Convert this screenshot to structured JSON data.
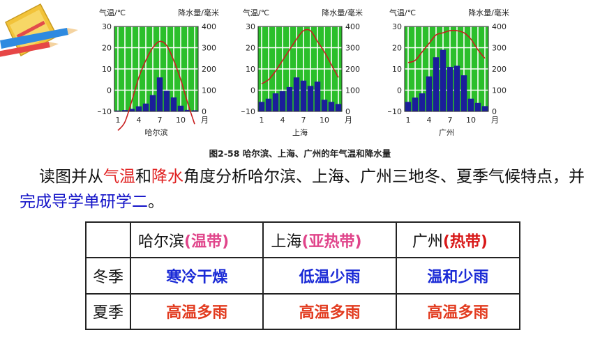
{
  "figure": {
    "caption": "图2-58 哈尔滨、上海、广州的年气温和降水量",
    "left_axis_title": "气温/℃",
    "right_axis_title": "降水量/毫米",
    "x_unit": "月"
  },
  "chart_data": [
    {
      "type": "bar",
      "city": "哈尔滨",
      "months": [
        1,
        2,
        3,
        4,
        5,
        6,
        7,
        8,
        9,
        10,
        11,
        12
      ],
      "x_ticks": [
        1,
        4,
        7,
        10
      ],
      "precip_mm": [
        4,
        6,
        12,
        24,
        37,
        77,
        160,
        97,
        66,
        27,
        7,
        5
      ],
      "temp_c": [
        -19,
        -15,
        -5,
        6,
        14,
        20,
        23,
        21,
        14,
        5,
        -6,
        -16
      ],
      "temp_ylim": [
        -10,
        30
      ],
      "temp_ticks": [
        -10,
        0,
        10,
        20,
        30
      ],
      "precip_ylim": [
        0,
        400
      ],
      "precip_ticks": [
        0,
        100,
        200,
        300,
        400
      ]
    },
    {
      "type": "bar",
      "city": "上海",
      "months": [
        1,
        2,
        3,
        4,
        5,
        6,
        7,
        8,
        9,
        10,
        11,
        12
      ],
      "x_ticks": [
        1,
        4,
        7,
        10
      ],
      "precip_mm": [
        45,
        60,
        85,
        95,
        115,
        160,
        145,
        120,
        140,
        55,
        45,
        35
      ],
      "temp_c": [
        3,
        5,
        9,
        14,
        19,
        24,
        28,
        28,
        23,
        18,
        12,
        6
      ],
      "temp_ylim": [
        -10,
        30
      ],
      "temp_ticks": [
        -10,
        0,
        10,
        20,
        30
      ],
      "precip_ylim": [
        0,
        400
      ],
      "precip_ticks": [
        0,
        100,
        200,
        300,
        400
      ]
    },
    {
      "type": "bar",
      "city": "广州",
      "months": [
        1,
        2,
        3,
        4,
        5,
        6,
        7,
        8,
        9,
        10,
        11,
        12
      ],
      "x_ticks": [
        1,
        4,
        7,
        10
      ],
      "precip_mm": [
        45,
        65,
        85,
        165,
        255,
        290,
        210,
        215,
        170,
        60,
        40,
        25
      ],
      "temp_c": [
        13,
        14,
        18,
        22,
        26,
        27,
        28,
        28,
        27,
        24,
        19,
        15
      ],
      "temp_ylim": [
        -10,
        30
      ],
      "temp_ticks": [
        -10,
        0,
        10,
        20,
        30
      ],
      "precip_ylim": [
        0,
        400
      ],
      "precip_ticks": [
        0,
        100,
        200,
        300,
        400
      ]
    }
  ],
  "instruction": {
    "p1": "读图并从",
    "k1": "气温",
    "p2": "和",
    "k2": "降水",
    "p3": "角度分析哈尔滨、上海、广州三地冬、夏季气候特点，并",
    "k3": "完成导学单研学二",
    "p4": "。"
  },
  "table": {
    "headers": [
      {
        "city": "哈尔滨",
        "zone": "(温带)"
      },
      {
        "city": "上海",
        "zone": "(亚热带)"
      },
      {
        "city": "广州",
        "zone": "(热带)"
      }
    ],
    "rows": [
      {
        "label": "冬季",
        "cells": [
          "寒冷干燥",
          "低温少雨",
          "温和少雨"
        ]
      },
      {
        "label": "夏季",
        "cells": [
          "高温多雨",
          "高温多雨",
          "高温多雨"
        ]
      }
    ]
  },
  "colors": {
    "plot_bg": "#2bbf2b",
    "grid": "#ffffff",
    "bars": "#1b1e9a",
    "temp_line": "#c81e1e"
  }
}
